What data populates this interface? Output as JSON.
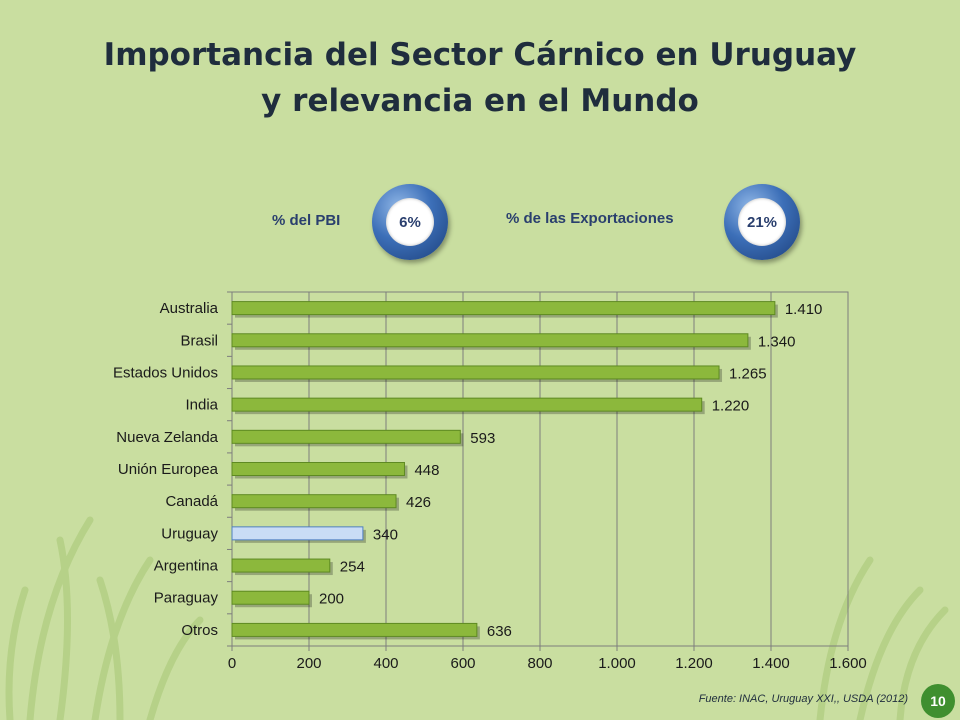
{
  "title_line1": "Importancia del Sector Cárnico en Uruguay",
  "title_line2": "y relevancia en el Mundo",
  "metrics": {
    "pbi_label": "% del PBI",
    "pbi_value": "6%",
    "exports_label": "% de las Exportaciones",
    "exports_value": "21%"
  },
  "source": "Fuente: INAC, Uruguay XXI,, USDA (2012)",
  "page_number": "10",
  "colors": {
    "bar": "#8cb83c",
    "highlight_bar": "#c9dcf5",
    "grid": "#7d7d7d",
    "background": "#c9dea0"
  },
  "chart_data": {
    "type": "bar",
    "orientation": "horizontal",
    "categories": [
      "Australia",
      "Brasil",
      "Estados Unidos",
      "India",
      "Nueva Zelanda",
      "Unión Europea",
      "Canadá",
      "Uruguay",
      "Argentina",
      "Paraguay",
      "Otros"
    ],
    "values": [
      1410,
      1340,
      1265,
      1220,
      593,
      448,
      426,
      340,
      254,
      200,
      636
    ],
    "value_labels": [
      "1.410",
      "1.340",
      "1.265",
      "1.220",
      "593",
      "448",
      "426",
      "340",
      "254",
      "200",
      "636"
    ],
    "highlight": "Uruguay",
    "xlim": [
      0,
      1600
    ],
    "xticks": [
      0,
      200,
      400,
      600,
      800,
      1000,
      1200,
      1400,
      1600
    ],
    "xtick_labels": [
      "0",
      "200",
      "400",
      "600",
      "800",
      "1.000",
      "1.200",
      "1.400",
      "1.600"
    ],
    "grid": true
  }
}
